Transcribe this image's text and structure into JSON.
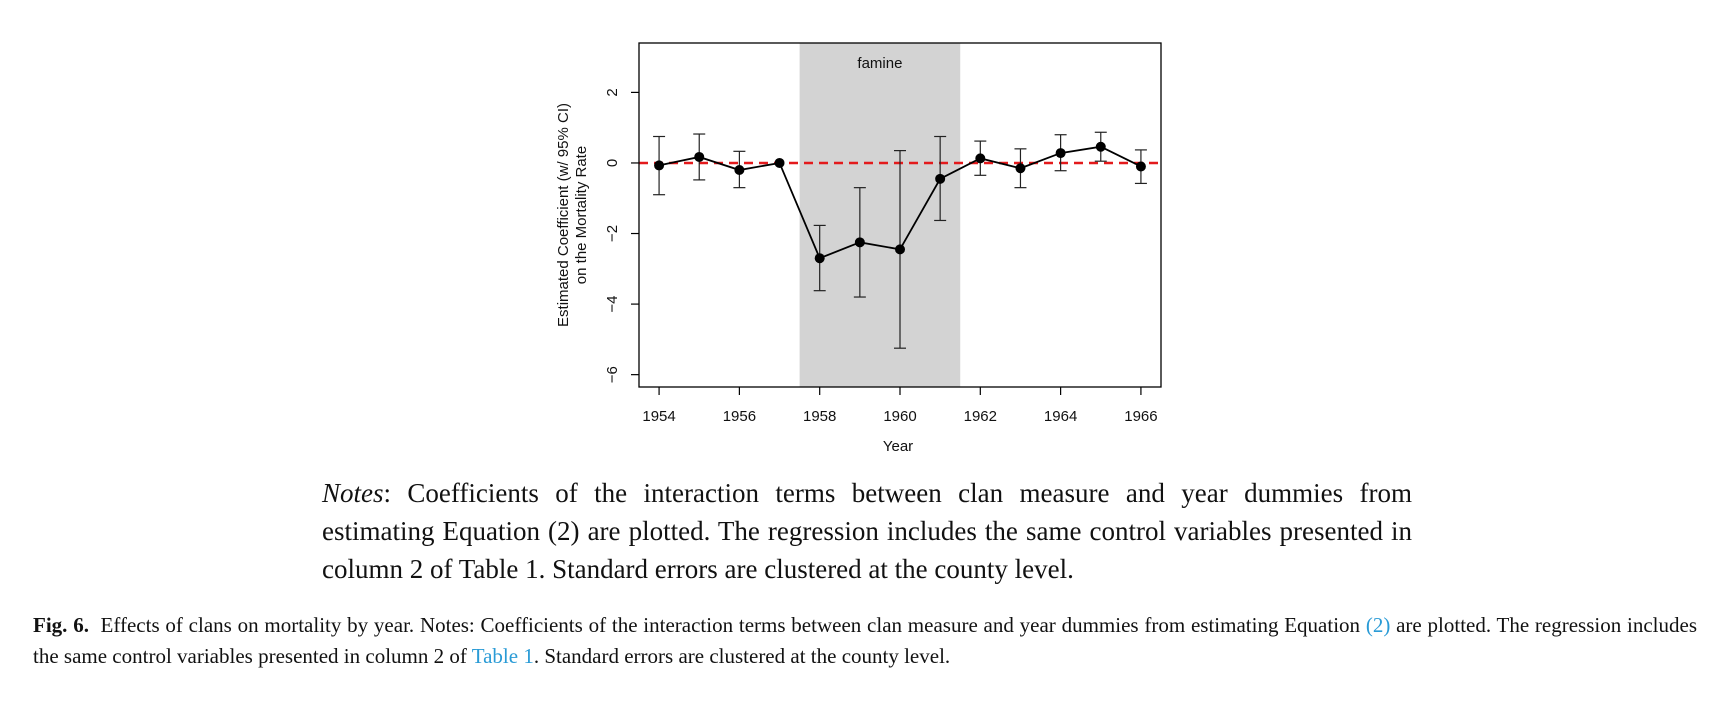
{
  "chart_data": {
    "type": "line",
    "xlabel": "Year",
    "ylabel_line1": "Estimated Coefficient (w/ 95% CI)",
    "ylabel_line2": "on the Mortality Rate",
    "xlim": [
      1953.5,
      1966.5
    ],
    "ylim": [
      -6.35,
      3.4
    ],
    "x_ticks": [
      "1954",
      "1956",
      "1958",
      "1960",
      "1962",
      "1964",
      "1966"
    ],
    "y_ticks": [
      "2",
      "0",
      "−2",
      "−4",
      "−6"
    ],
    "shaded_region": {
      "label": "famine",
      "x_start": 1957.5,
      "x_end": 1961.5,
      "color": "#d3d3d3"
    },
    "reference_line": {
      "y": 0,
      "color": "#e31a1c",
      "style": "dashed"
    },
    "series": [
      {
        "x": [
          1954,
          1955,
          1956,
          1957,
          1958,
          1959,
          1960,
          1961,
          1962,
          1963,
          1964,
          1965,
          1966
        ],
        "y": [
          -0.07,
          0.17,
          -0.2,
          0.0,
          -2.7,
          -2.25,
          -2.45,
          -0.45,
          0.13,
          -0.15,
          0.28,
          0.46,
          -0.1
        ],
        "ci_low": [
          -0.9,
          -0.48,
          -0.7,
          0.0,
          -3.62,
          -3.8,
          -5.25,
          -1.63,
          -0.35,
          -0.7,
          -0.22,
          0.05,
          -0.58
        ],
        "ci_high": [
          0.75,
          0.82,
          0.33,
          0.0,
          -1.77,
          -0.7,
          0.35,
          0.75,
          0.62,
          0.4,
          0.8,
          0.87,
          0.37
        ]
      }
    ],
    "grid": false
  },
  "notes": {
    "label": "Notes",
    "text": ": Coefficients of the interaction terms between clan measure and year dummies from estimating Equation (2) are plotted. The regression includes the same control variables presented in column 2 of Table 1. Standard errors are clustered at the county level."
  },
  "caption": {
    "fig_label": "Fig. 6.",
    "text_1": "Effects of clans on mortality by year. Notes: Coefficients of the interaction terms between clan measure and year dummies from estimating Equation ",
    "link_equation": "(2)",
    "text_2": " are plotted. The regression includes the same control variables presented in column 2 of ",
    "link_table": "Table 1",
    "text_3": ". Standard errors are clustered at the county level."
  }
}
